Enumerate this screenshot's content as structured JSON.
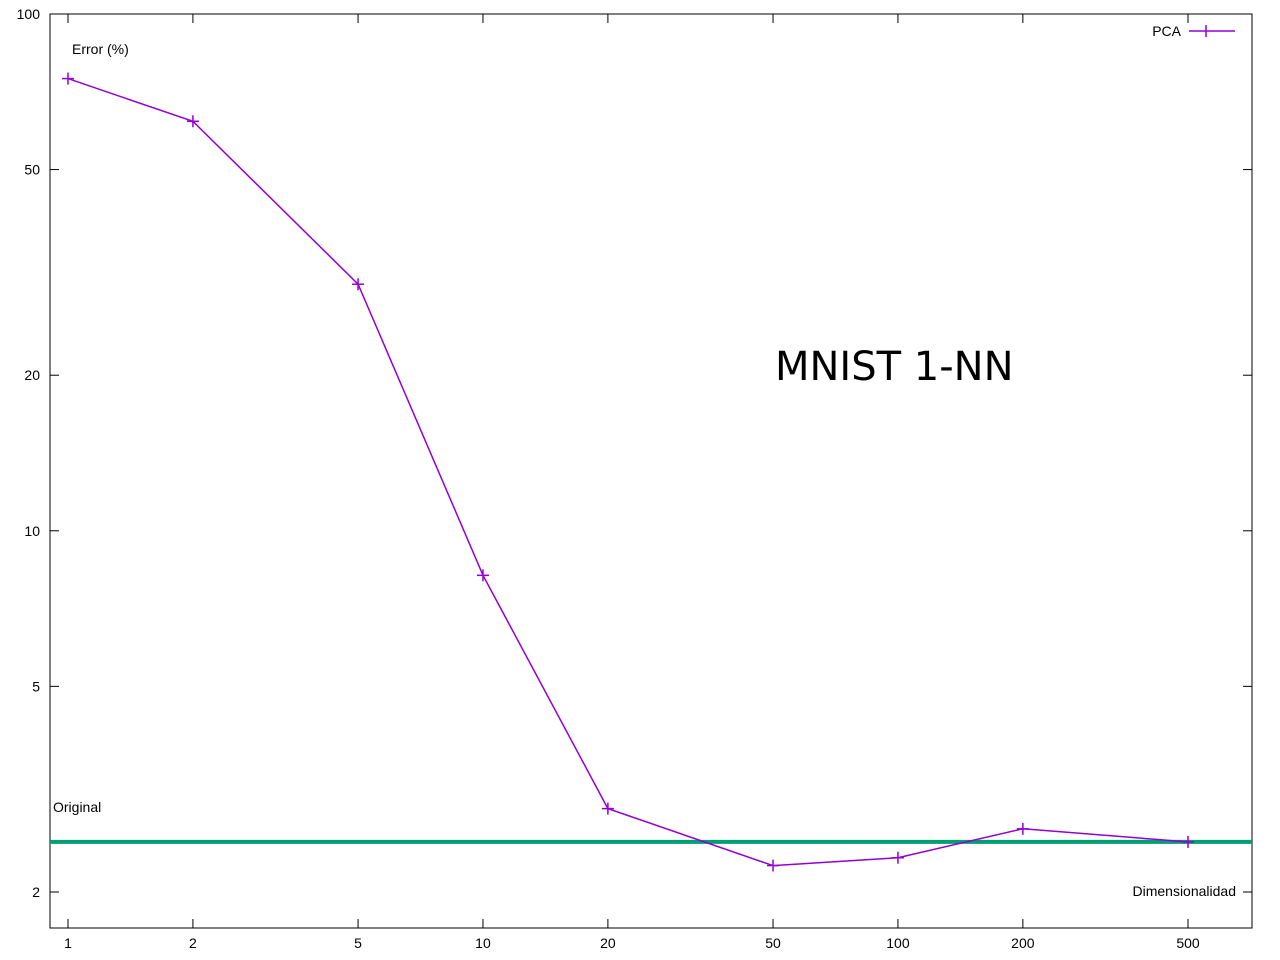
{
  "chart_data": {
    "type": "line",
    "title": "MNIST 1-NN",
    "ylabel": "Error (%)",
    "xlabel": "Dimensionalidad",
    "x_scale": "log",
    "y_scale": "log",
    "xlim": [
      0.9,
      700
    ],
    "ylim": [
      1.7,
      100
    ],
    "x_ticks": [
      1,
      2,
      5,
      10,
      20,
      50,
      100,
      200,
      500
    ],
    "x_tick_labels": [
      "1",
      "2",
      "5",
      "10",
      "20",
      "50",
      "100",
      "200",
      "500"
    ],
    "y_ticks": [
      2,
      5,
      10,
      20,
      50,
      100
    ],
    "y_tick_labels": [
      "2",
      "5",
      "10",
      "20",
      "50",
      "100"
    ],
    "grid": false,
    "legend_position": "top-right",
    "series": [
      {
        "name": "PCA",
        "color": "#9400d3",
        "marker": "plus",
        "x": [
          1,
          2,
          5,
          10,
          20,
          50,
          100,
          200,
          500
        ],
        "y": [
          75.0,
          62.0,
          30.0,
          8.2,
          2.9,
          2.25,
          2.33,
          2.65,
          2.5
        ]
      }
    ],
    "reference_line": {
      "label": "Original",
      "y": 2.5,
      "color": "#009e73"
    }
  }
}
